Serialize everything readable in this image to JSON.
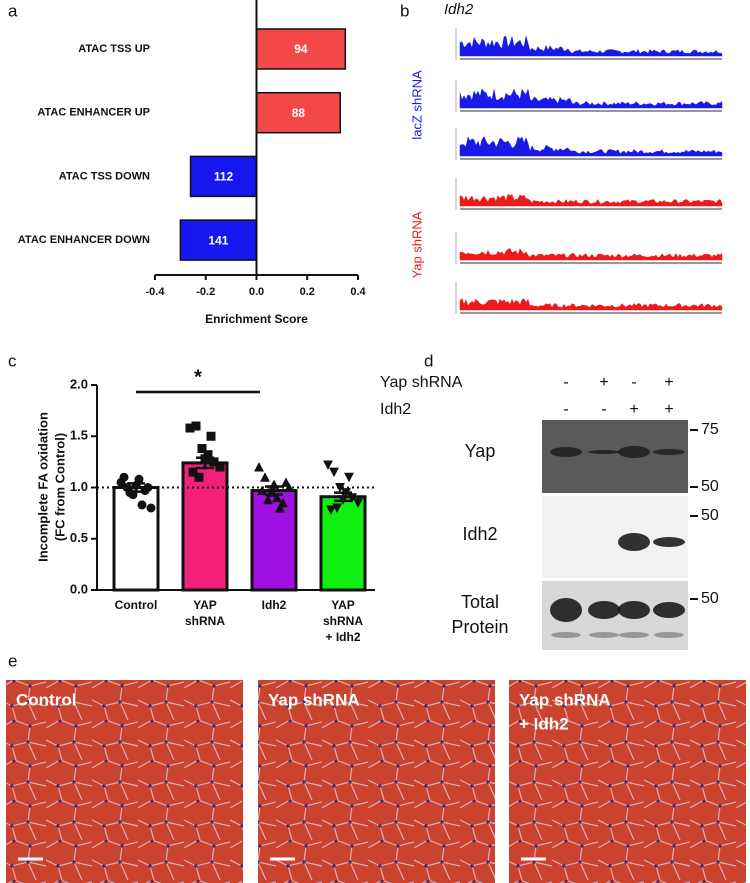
{
  "panel_labels": [
    "a",
    "b",
    "c",
    "d",
    "e"
  ],
  "chart_data": [
    {
      "type": "hbar",
      "xlabel": "Enrichment Score",
      "categories": [
        "ATAC TSS UP",
        "ATAC ENHANCER UP",
        "ATAC TSS DOWN",
        "ATAC ENHANCER DOWN"
      ],
      "values": [
        0.35,
        0.33,
        -0.26,
        -0.3
      ],
      "annotations": [
        94,
        88,
        112,
        141
      ],
      "colors": [
        "#f24848",
        "#f24848",
        "#1616ee",
        "#1616ee"
      ],
      "xlim": [
        -0.4,
        0.4
      ],
      "xticks": [
        -0.4,
        -0.2,
        {
          "value": 0,
          "label": "0.0"
        },
        0.2,
        0.4
      ]
    },
    {
      "type": "dotbar",
      "ylabel": [
        "Incomplete FA oxidation",
        "(FC from Control)"
      ],
      "categories": [
        [
          "Control"
        ],
        [
          "YAP",
          "shRNA"
        ],
        [
          "Idh2"
        ],
        [
          "YAP",
          "shRNA",
          "+ Idh2"
        ]
      ],
      "values": [
        1.0,
        1.24,
        0.97,
        0.91
      ],
      "errors": [
        0.04,
        0.05,
        0.04,
        0.04
      ],
      "colors": [
        "#ffffff",
        "#f2207a",
        "#a010e0",
        "#10f010"
      ],
      "markers": [
        "circle",
        "square",
        "triangle-up",
        "triangle-down"
      ],
      "points": [
        [
          1.05,
          1.0,
          0.93,
          1.08,
          0.97,
          0.8,
          1.1,
          0.95,
          1.02,
          0.83,
          1.0
        ],
        [
          1.58,
          1.6,
          1.38,
          1.32,
          1.25,
          1.2,
          1.15,
          1.1,
          1.28,
          1.5
        ],
        [
          1.2,
          1.1,
          0.95,
          0.9,
          0.85,
          1.0,
          0.97,
          0.88,
          1.03,
          0.8,
          1.05
        ],
        [
          1.22,
          1.15,
          1.0,
          0.95,
          0.9,
          0.85,
          0.78,
          0.8,
          0.88,
          1.1
        ]
      ],
      "reference_line": 1,
      "significance_label": "*",
      "ylim": [
        0,
        2
      ],
      "yticks": [
        {
          "value": 0,
          "label": "0.0"
        },
        0.5,
        {
          "value": 1,
          "label": "1.0"
        },
        1.5,
        {
          "value": 2,
          "label": "2.0"
        }
      ]
    }
  ],
  "tracks": {
    "gene": "Idh2",
    "groups": [
      "lacZ shRNA",
      "Yap shRNA"
    ]
  },
  "blot": {
    "row_headers": [
      "Yap shRNA",
      "Idh2"
    ],
    "signs": [
      [
        "-",
        "+",
        "-",
        "+"
      ],
      [
        "-",
        "-",
        "+",
        "+"
      ]
    ],
    "panels": [
      {
        "label": [
          "Yap"
        ],
        "markers": [
          75,
          50
        ]
      },
      {
        "label": [
          "Idh2"
        ],
        "markers": [
          50
        ]
      },
      {
        "label": [
          "Total",
          "Protein"
        ],
        "markers": [
          50
        ]
      }
    ]
  },
  "histology": {
    "labels": [
      [
        "Control"
      ],
      [
        "Yap shRNA"
      ],
      [
        "Yap shRNA",
        "+ Idh2"
      ]
    ]
  }
}
